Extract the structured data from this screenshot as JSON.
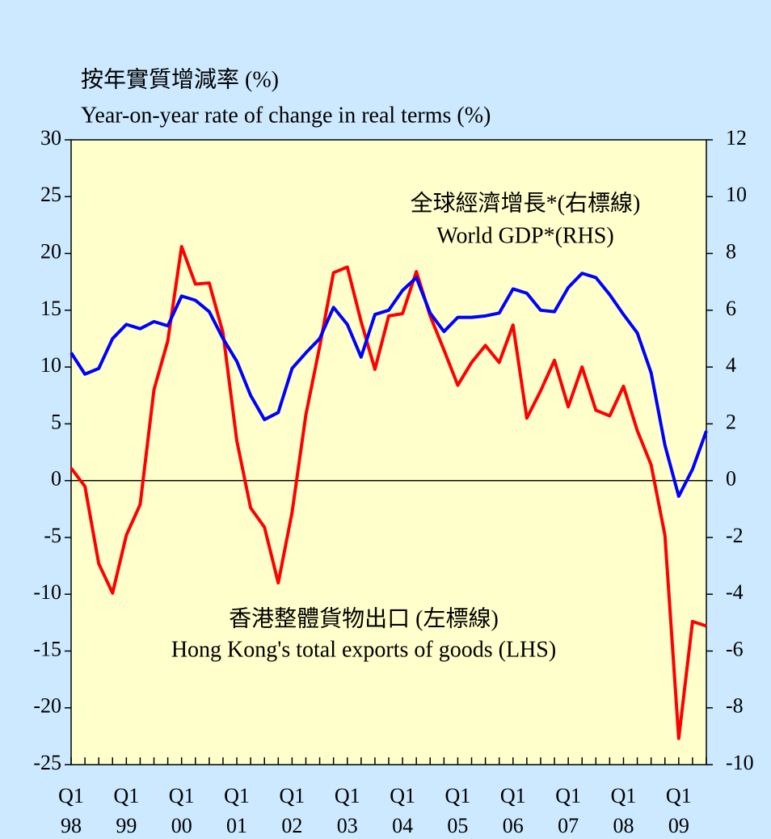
{
  "chart_data": {
    "type": "line",
    "title": "按年實質增減率 (%)",
    "subtitle": "Year-on-year rate of change in real terms (%)",
    "categories": [
      "Q1 98",
      null,
      null,
      null,
      "Q1 99",
      null,
      null,
      null,
      "Q1 00",
      null,
      null,
      null,
      "Q1 01",
      null,
      null,
      null,
      "Q1 02",
      null,
      null,
      null,
      "Q1 03",
      null,
      null,
      null,
      "Q1 04",
      null,
      null,
      null,
      "Q1 05",
      null,
      null,
      null,
      "Q1 06",
      null,
      null,
      null,
      "Q1 07",
      null,
      null,
      null,
      "Q1 08",
      null,
      null,
      null,
      "Q1 09",
      null,
      null
    ],
    "series": [
      {
        "name": "Hong Kong's total exports of goods (LHS)",
        "name_zh": "香港整體貨物出口 (左標線)",
        "color": "#ff0000",
        "axis": "y",
        "values": [
          1.1,
          -0.5,
          -7.3,
          -9.9,
          -4.8,
          -2.1,
          8.0,
          12.3,
          20.6,
          17.3,
          17.4,
          13.0,
          3.5,
          -2.4,
          -4.1,
          -9.0,
          -2.8,
          5.8,
          11.8,
          18.3,
          18.8,
          14.0,
          9.8,
          14.5,
          14.7,
          18.4,
          14.5,
          11.5,
          8.4,
          10.4,
          11.9,
          10.4,
          13.7,
          5.5,
          7.9,
          10.6,
          6.5,
          10.0,
          6.2,
          5.7,
          8.3,
          4.4,
          1.4,
          -4.8,
          -22.7,
          -12.4,
          -12.8
        ]
      },
      {
        "name": "World GDP*(RHS)",
        "name_zh": "全球經濟增長*(右標線)",
        "color": "#0000ff",
        "axis": "y2",
        "values": [
          4.5,
          3.75,
          3.95,
          5.0,
          5.5,
          5.35,
          5.6,
          5.45,
          6.5,
          6.35,
          5.95,
          5.0,
          4.2,
          3.0,
          2.15,
          2.4,
          3.95,
          4.5,
          5.0,
          6.1,
          5.5,
          4.35,
          5.85,
          6.0,
          6.7,
          7.15,
          5.9,
          5.25,
          5.75,
          5.75,
          5.8,
          5.9,
          6.75,
          6.6,
          6.0,
          5.95,
          6.8,
          7.3,
          7.15,
          6.55,
          5.85,
          5.2,
          3.8,
          1.25,
          -0.55,
          0.4,
          1.75
        ]
      }
    ],
    "ylim": [
      -25,
      30
    ],
    "yticks": [
      -25,
      -20,
      -15,
      -10,
      -5,
      0,
      5,
      10,
      15,
      20,
      25,
      30
    ],
    "y2lim": [
      -10,
      12
    ],
    "y2ticks": [
      -10,
      -8,
      -6,
      -4,
      -2,
      0,
      2,
      4,
      6,
      8,
      10,
      12
    ],
    "hline": 0
  }
}
